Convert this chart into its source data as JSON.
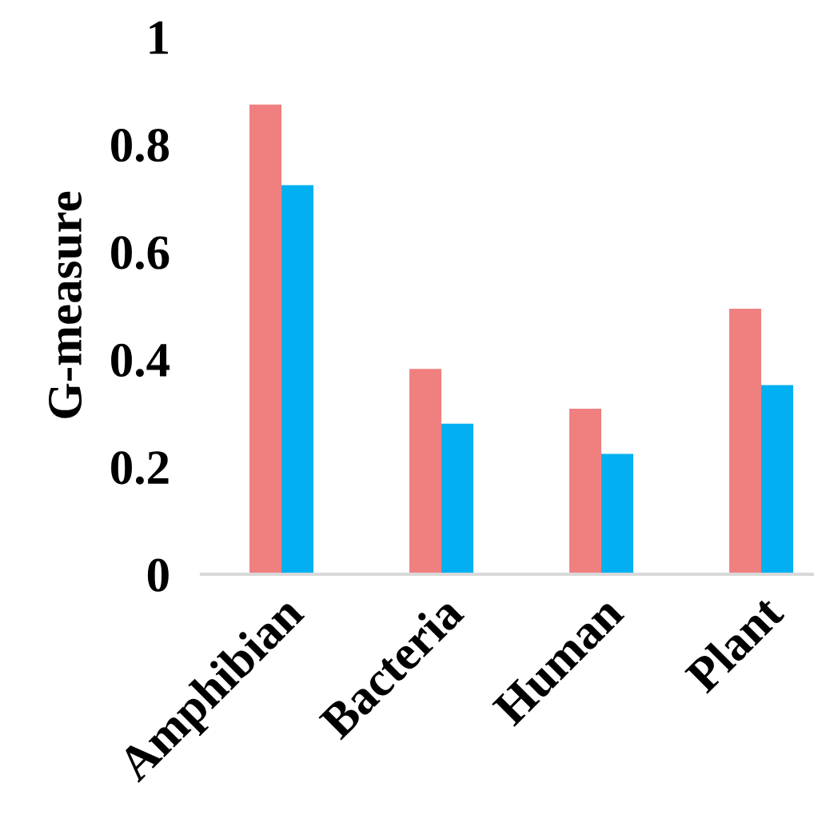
{
  "chart_data": {
    "type": "bar",
    "ylabel": "G-measure",
    "categories": [
      "Amphibian",
      "Bacteria",
      "Human",
      "Plant"
    ],
    "series": [
      {
        "color": "#f08080",
        "values": [
          0.874,
          0.382,
          0.308,
          0.494
        ]
      },
      {
        "color": "#00b0f0",
        "values": [
          0.724,
          0.28,
          0.224,
          0.352
        ]
      }
    ],
    "ylim": [
      0,
      1
    ],
    "yticks": [
      0,
      0.2,
      0.4,
      0.6,
      0.8,
      1
    ],
    "grid": false
  }
}
